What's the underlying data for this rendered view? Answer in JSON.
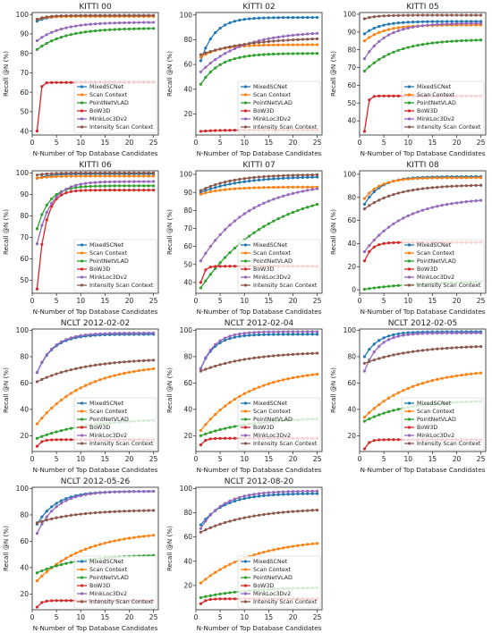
{
  "legend_order": [
    "MixedSCNet",
    "Scan Context",
    "PointNetVLAD",
    "BoW3D",
    "MinkLoc3Dv2",
    "Intensity Scan Context"
  ],
  "colors": {
    "MixedSCNet": "#1f77b4",
    "Scan Context": "#ff7f0e",
    "PointNetVLAD": "#2ca02c",
    "BoW3D": "#d62728",
    "MinkLoc3Dv2": "#9467bd",
    "Intensity Scan Context": "#8c564b"
  },
  "chart_data": [
    {
      "type": "line",
      "title": "KITTI 00",
      "xlabel": "N-Number of Top Database Candidates",
      "ylabel": "Recall @N (%)",
      "xlim": [
        0,
        26
      ],
      "ylim": [
        38,
        101
      ],
      "xticks": [
        0,
        5,
        10,
        15,
        20,
        25
      ],
      "yticks": [
        40,
        50,
        60,
        70,
        80,
        90,
        100
      ],
      "legend_position": "lower-right",
      "series": [
        {
          "name": "MixedSCNet",
          "start": 96.5,
          "end": 99.5,
          "k": 0.4
        },
        {
          "name": "Scan Context",
          "start": 97.5,
          "end": 99.0,
          "k": 0.5
        },
        {
          "name": "PointNetVLAD",
          "start": 82.0,
          "end": 93.0,
          "k": 0.17
        },
        {
          "name": "BoW3D",
          "start": 40.0,
          "end": 65.0,
          "k": 2.5
        },
        {
          "name": "MinkLoc3Dv2",
          "start": 86.5,
          "end": 96.0,
          "k": 0.2
        },
        {
          "name": "Intensity Scan Context",
          "start": 97.5,
          "end": 99.5,
          "k": 0.5
        }
      ]
    },
    {
      "type": "line",
      "title": "KITTI 02",
      "xlabel": "N-Number of Top Database Candidates",
      "ylabel": "Recall @N (%)",
      "xlim": [
        0,
        26
      ],
      "ylim": [
        3,
        102
      ],
      "xticks": [
        0,
        5,
        10,
        15,
        20,
        25
      ],
      "yticks": [
        20,
        40,
        60,
        80,
        100
      ],
      "legend_position": "lower-right",
      "series": [
        {
          "name": "MixedSCNet",
          "start": 63.0,
          "end": 98.0,
          "k": 0.35
        },
        {
          "name": "Scan Context",
          "start": 66.0,
          "end": 76.0,
          "k": 0.25
        },
        {
          "name": "PointNetVLAD",
          "start": 44.0,
          "end": 69.0,
          "k": 0.25
        },
        {
          "name": "BoW3D",
          "start": 6.0,
          "end": 7.0,
          "k": 0.3
        },
        {
          "name": "MinkLoc3Dv2",
          "start": 54.0,
          "end": 87.0,
          "k": 0.12
        },
        {
          "name": "Intensity Scan Context",
          "start": 68.0,
          "end": 82.0,
          "k": 0.1
        }
      ]
    },
    {
      "type": "line",
      "title": "KITTI 05",
      "xlabel": "N-Number of Top Database Candidates",
      "ylabel": "Recall @N (%)",
      "xlim": [
        0,
        26
      ],
      "ylim": [
        32,
        101
      ],
      "xticks": [
        0,
        5,
        10,
        15,
        20,
        25
      ],
      "yticks": [
        40,
        50,
        60,
        70,
        80,
        90,
        100
      ],
      "legend_position": "lower-right",
      "series": [
        {
          "name": "MixedSCNet",
          "start": 89.0,
          "end": 96.0,
          "k": 0.3
        },
        {
          "name": "Scan Context",
          "start": 85.0,
          "end": 94.0,
          "k": 0.25
        },
        {
          "name": "PointNetVLAD",
          "start": 68.0,
          "end": 86.0,
          "k": 0.15
        },
        {
          "name": "BoW3D",
          "start": 34.0,
          "end": 54.0,
          "k": 2.2
        },
        {
          "name": "MinkLoc3Dv2",
          "start": 75.0,
          "end": 95.0,
          "k": 0.22
        },
        {
          "name": "Intensity Scan Context",
          "start": 97.5,
          "end": 99.5,
          "k": 0.4
        }
      ]
    },
    {
      "type": "line",
      "title": "KITTI 06",
      "xlabel": "N-Number of Top Database Candidates",
      "ylabel": "Recall @N (%)",
      "xlim": [
        0,
        26
      ],
      "ylim": [
        44,
        101
      ],
      "xticks": [
        0,
        5,
        10,
        15,
        20,
        25
      ],
      "yticks": [
        50,
        60,
        70,
        80,
        90,
        100
      ],
      "legend_position": "lower-right",
      "series": [
        {
          "name": "MixedSCNet",
          "start": 97.5,
          "end": 99.5,
          "k": 0.4
        },
        {
          "name": "Scan Context",
          "start": 97.5,
          "end": 98.5,
          "k": 0.4
        },
        {
          "name": "PointNetVLAD",
          "start": 74.0,
          "end": 94.0,
          "k": 0.4
        },
        {
          "name": "BoW3D",
          "start": 46.0,
          "end": 92.0,
          "k": 0.6
        },
        {
          "name": "MinkLoc3Dv2",
          "start": 67.0,
          "end": 96.0,
          "k": 0.35
        },
        {
          "name": "Intensity Scan Context",
          "start": 99.0,
          "end": 100.0,
          "k": 0.4
        }
      ]
    },
    {
      "type": "line",
      "title": "KITTI 07",
      "xlabel": "N-Number of Top Database Candidates",
      "ylabel": "Recall @N (%)",
      "xlim": [
        0,
        26
      ],
      "ylim": [
        34,
        102
      ],
      "xticks": [
        0,
        5,
        10,
        15,
        20,
        25
      ],
      "yticks": [
        40,
        50,
        60,
        70,
        80,
        90,
        100
      ],
      "legend_position": "lower-right",
      "series": [
        {
          "name": "MixedSCNet",
          "start": 90.0,
          "end": 99.0,
          "k": 0.12
        },
        {
          "name": "Scan Context",
          "start": 89.0,
          "end": 93.0,
          "k": 0.2
        },
        {
          "name": "PointNetVLAD",
          "start": 37.0,
          "end": 94.0,
          "k": 0.07
        },
        {
          "name": "BoW3D",
          "start": 40.0,
          "end": 49.0,
          "k": 1.5
        },
        {
          "name": "MinkLoc3Dv2",
          "start": 52.0,
          "end": 96.0,
          "k": 0.1
        },
        {
          "name": "Intensity Scan Context",
          "start": 91.0,
          "end": 100.0,
          "k": 0.15
        }
      ]
    },
    {
      "type": "line",
      "title": "KITTI 08",
      "xlabel": "N-Number of Top Database Candidates",
      "ylabel": "Recall @N (%)",
      "xlim": [
        0,
        26
      ],
      "ylim": [
        -3,
        103
      ],
      "xticks": [
        0,
        5,
        10,
        15,
        20,
        25
      ],
      "yticks": [
        0,
        20,
        40,
        60,
        80,
        100
      ],
      "legend_position": "lower-right",
      "series": [
        {
          "name": "MixedSCNet",
          "start": 74.0,
          "end": 98.0,
          "k": 0.3
        },
        {
          "name": "Scan Context",
          "start": 79.0,
          "end": 97.0,
          "k": 0.3
        },
        {
          "name": "PointNetVLAD",
          "start": 0.5,
          "end": 8.0,
          "k": 0.08
        },
        {
          "name": "BoW3D",
          "start": 25.0,
          "end": 41.0,
          "k": 0.7
        },
        {
          "name": "MinkLoc3Dv2",
          "start": 33.0,
          "end": 80.0,
          "k": 0.12
        },
        {
          "name": "Intensity Scan Context",
          "start": 70.0,
          "end": 91.0,
          "k": 0.15
        }
      ]
    },
    {
      "type": "line",
      "title": "NCLT 2012-02-02",
      "xlabel": "N-Number of Top Database Candidates",
      "ylabel": "Recall @N (%)",
      "xlim": [
        0,
        26
      ],
      "ylim": [
        8,
        101
      ],
      "xticks": [
        0,
        5,
        10,
        15,
        20,
        25
      ],
      "yticks": [
        20,
        40,
        60,
        80,
        100
      ],
      "legend_position": "lower-right",
      "series": [
        {
          "name": "MixedSCNet",
          "start": 68.0,
          "end": 97.0,
          "k": 0.3
        },
        {
          "name": "Scan Context",
          "start": 29.0,
          "end": 75.0,
          "k": 0.1
        },
        {
          "name": "PointNetVLAD",
          "start": 18.0,
          "end": 33.0,
          "k": 0.1
        },
        {
          "name": "BoW3D",
          "start": 12.0,
          "end": 17.0,
          "k": 1.2
        },
        {
          "name": "MinkLoc3Dv2",
          "start": 68.0,
          "end": 98.0,
          "k": 0.3
        },
        {
          "name": "Intensity Scan Context",
          "start": 61.0,
          "end": 79.0,
          "k": 0.1
        }
      ]
    },
    {
      "type": "line",
      "title": "NCLT 2012-02-04",
      "xlabel": "N-Number of Top Database Candidates",
      "ylabel": "Recall @N (%)",
      "xlim": [
        0,
        26
      ],
      "ylim": [
        8,
        101
      ],
      "xticks": [
        0,
        5,
        10,
        15,
        20,
        25
      ],
      "yticks": [
        20,
        40,
        60,
        80,
        100
      ],
      "legend_position": "lower-right",
      "series": [
        {
          "name": "MixedSCNet",
          "start": 71.0,
          "end": 97.0,
          "k": 0.35
        },
        {
          "name": "Scan Context",
          "start": 24.0,
          "end": 71.0,
          "k": 0.1
        },
        {
          "name": "PointNetVLAD",
          "start": 20.0,
          "end": 34.0,
          "k": 0.1
        },
        {
          "name": "BoW3D",
          "start": 13.0,
          "end": 18.0,
          "k": 1.2
        },
        {
          "name": "MinkLoc3Dv2",
          "start": 71.0,
          "end": 99.0,
          "k": 0.35
        },
        {
          "name": "Intensity Scan Context",
          "start": 69.0,
          "end": 84.0,
          "k": 0.1
        }
      ]
    },
    {
      "type": "line",
      "title": "NCLT 2012-02-05",
      "xlabel": "N-Number of Top Database Candidates",
      "ylabel": "Recall @N (%)",
      "xlim": [
        0,
        26
      ],
      "ylim": [
        8,
        101
      ],
      "xticks": [
        0,
        5,
        10,
        15,
        20,
        25
      ],
      "yticks": [
        20,
        40,
        60,
        80,
        100
      ],
      "legend_position": "lower-right",
      "series": [
        {
          "name": "MixedSCNet",
          "start": 80.0,
          "end": 99.0,
          "k": 0.35
        },
        {
          "name": "Scan Context",
          "start": 34.0,
          "end": 71.0,
          "k": 0.1
        },
        {
          "name": "PointNetVLAD",
          "start": 31.0,
          "end": 47.0,
          "k": 0.12
        },
        {
          "name": "BoW3D",
          "start": 10.0,
          "end": 17.0,
          "k": 1.2
        },
        {
          "name": "MinkLoc3Dv2",
          "start": 69.0,
          "end": 98.0,
          "k": 0.35
        },
        {
          "name": "Intensity Scan Context",
          "start": 75.0,
          "end": 89.0,
          "k": 0.1
        }
      ]
    },
    {
      "type": "line",
      "title": "NCLT 2012-05-26",
      "xlabel": "N-Number of Top Database Candidates",
      "ylabel": "Recall @N (%)",
      "xlim": [
        0,
        26
      ],
      "ylim": [
        8,
        101
      ],
      "xticks": [
        0,
        5,
        10,
        15,
        20,
        25
      ],
      "yticks": [
        20,
        40,
        60,
        80,
        100
      ],
      "legend_position": "lower-right",
      "series": [
        {
          "name": "MixedSCNet",
          "start": 73.0,
          "end": 98.0,
          "k": 0.25
        },
        {
          "name": "Scan Context",
          "start": 30.0,
          "end": 68.0,
          "k": 0.1
        },
        {
          "name": "PointNetVLAD",
          "start": 36.0,
          "end": 50.0,
          "k": 0.12
        },
        {
          "name": "BoW3D",
          "start": 10.0,
          "end": 15.0,
          "k": 1.2
        },
        {
          "name": "MinkLoc3Dv2",
          "start": 66.0,
          "end": 98.0,
          "k": 0.25
        },
        {
          "name": "Intensity Scan Context",
          "start": 74.0,
          "end": 84.0,
          "k": 0.12
        }
      ]
    },
    {
      "type": "line",
      "title": "NCLT 2012-08-20",
      "xlabel": "N-Number of Top Database Candidates",
      "ylabel": "Recall @N (%)",
      "xlim": [
        0,
        26
      ],
      "ylim": [
        0,
        101
      ],
      "xticks": [
        0,
        5,
        10,
        15,
        20,
        25
      ],
      "yticks": [
        20,
        40,
        60,
        80,
        100
      ],
      "legend_position": "lower-right",
      "series": [
        {
          "name": "MixedSCNet",
          "start": 70.0,
          "end": 96.0,
          "k": 0.2
        },
        {
          "name": "Scan Context",
          "start": 22.0,
          "end": 59.0,
          "k": 0.09
        },
        {
          "name": "PointNetVLAD",
          "start": 10.0,
          "end": 19.0,
          "k": 0.1
        },
        {
          "name": "BoW3D",
          "start": 5.0,
          "end": 9.0,
          "k": 1.0
        },
        {
          "name": "MinkLoc3Dv2",
          "start": 67.0,
          "end": 98.0,
          "k": 0.22
        },
        {
          "name": "Intensity Scan Context",
          "start": 64.0,
          "end": 84.0,
          "k": 0.1
        }
      ]
    }
  ]
}
